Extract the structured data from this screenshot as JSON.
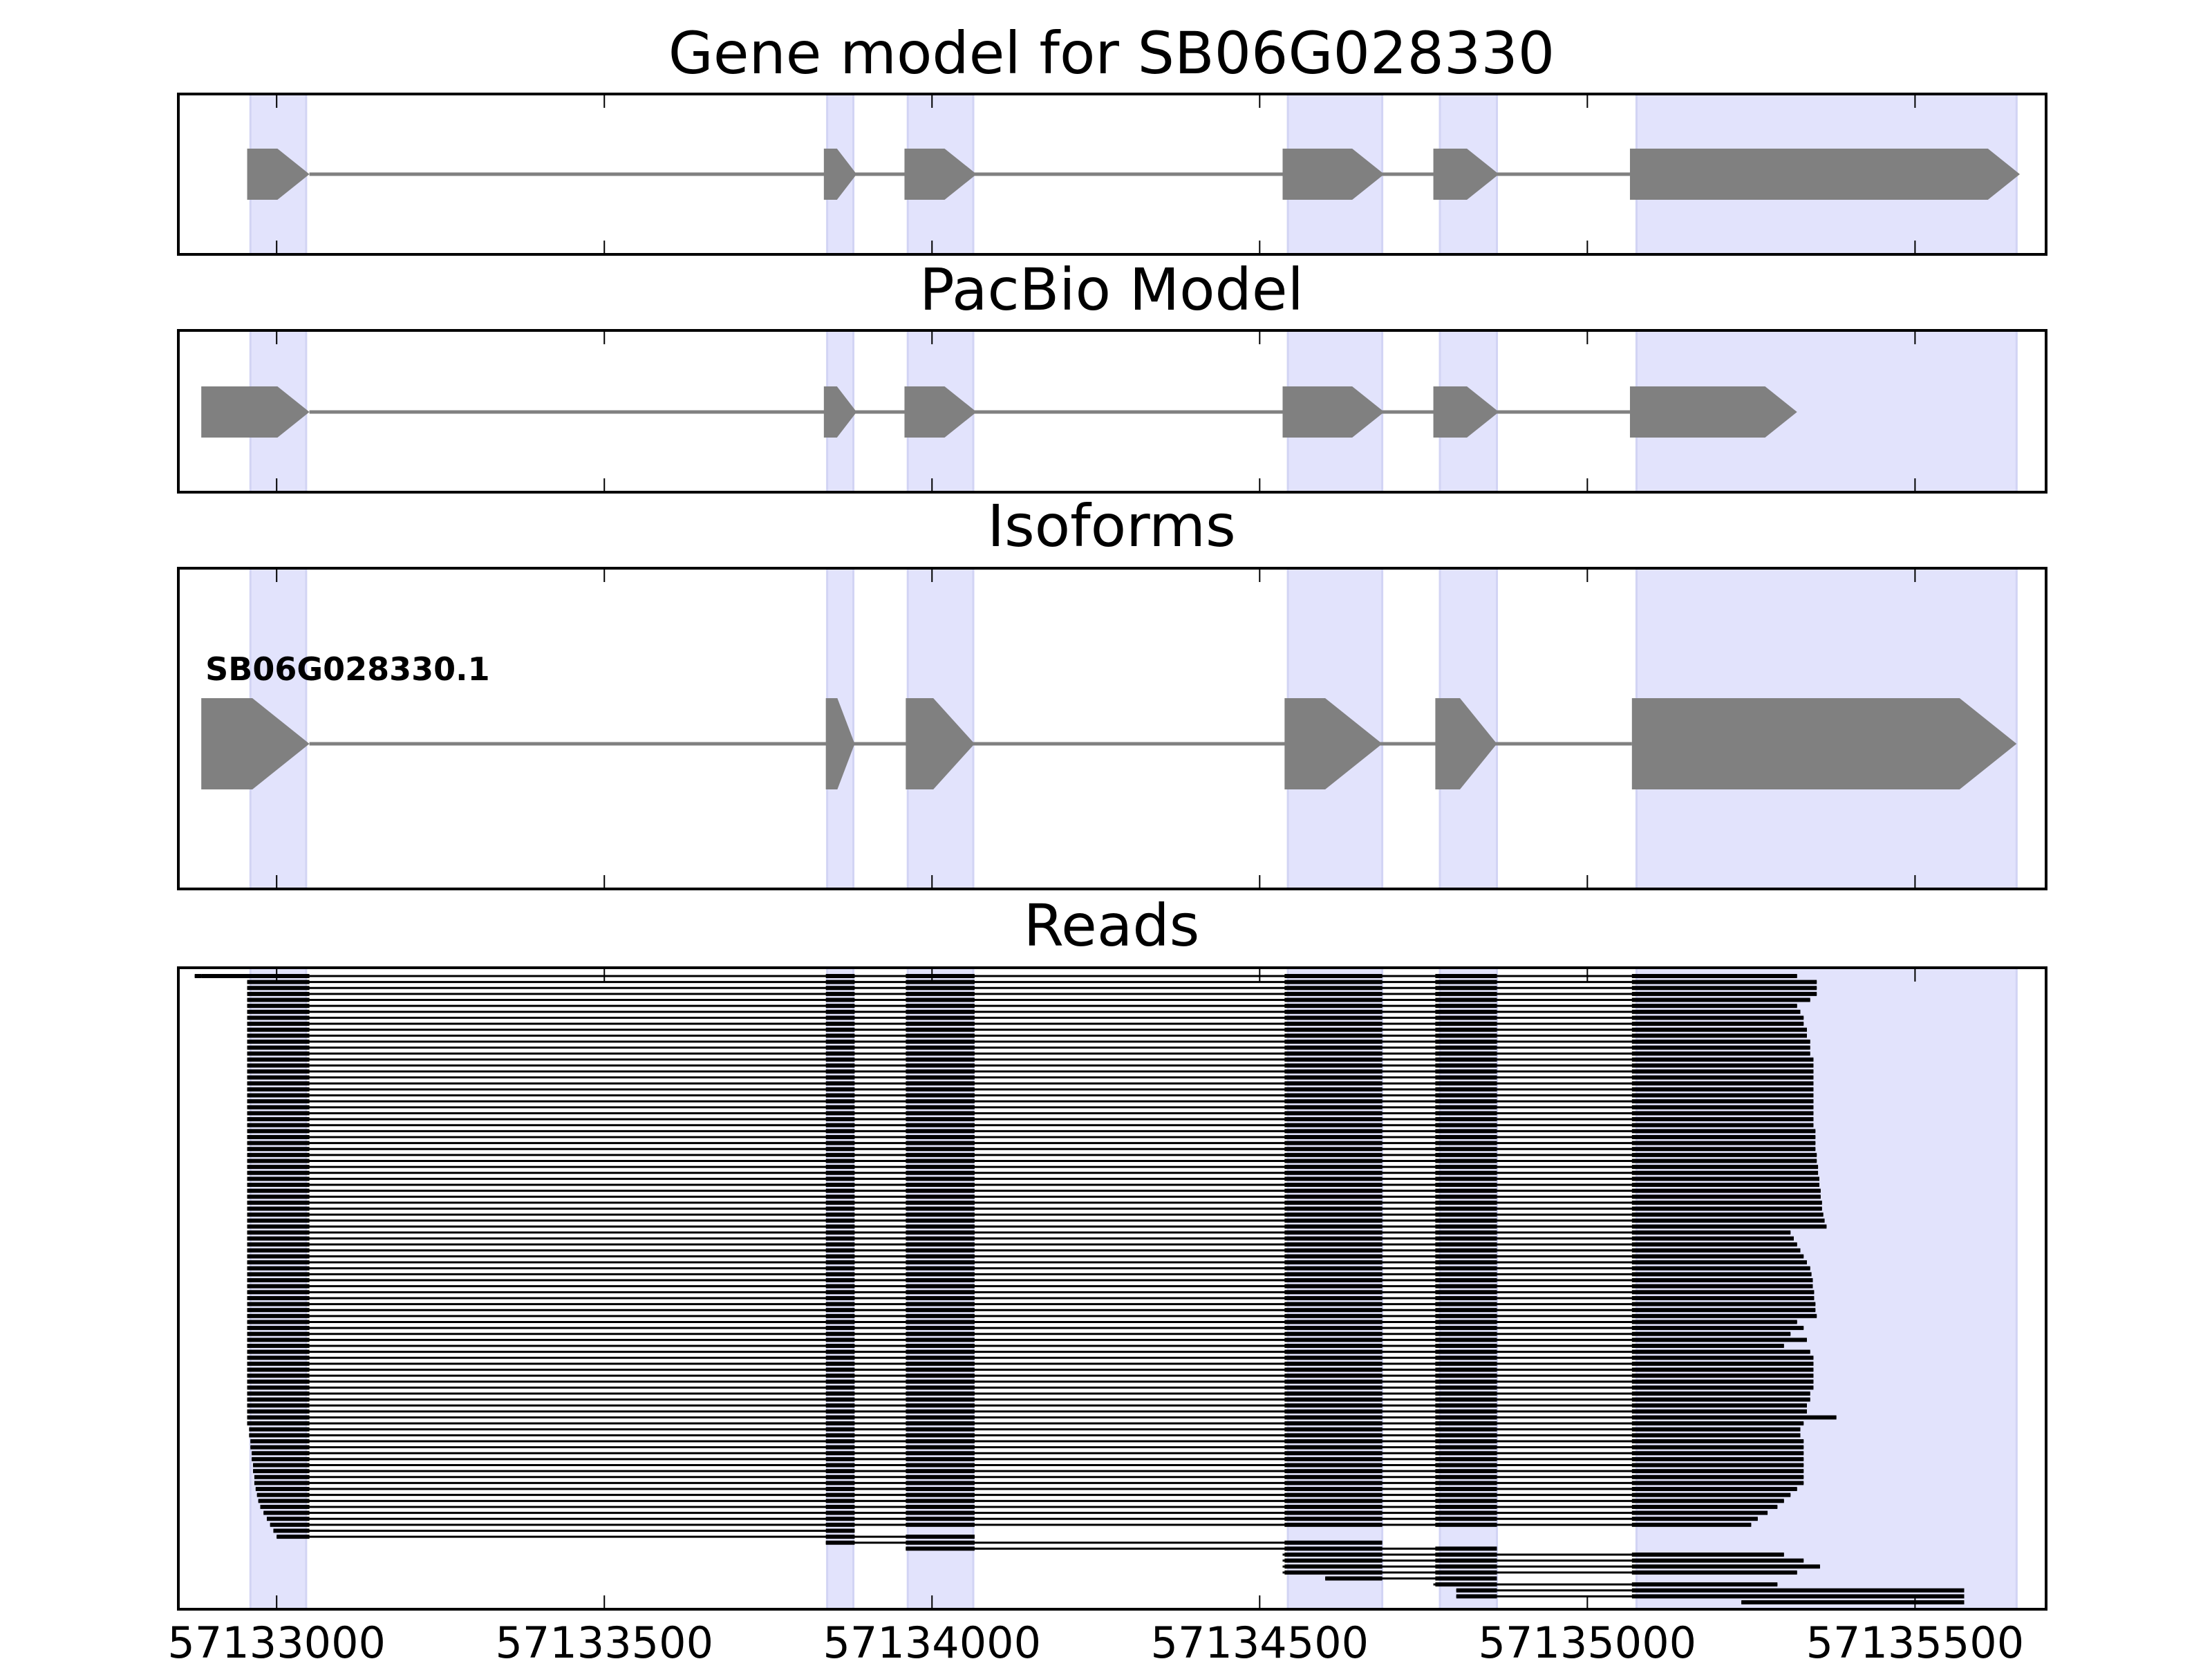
{
  "chart_data": {
    "type": "gene-track",
    "xlim": [
      57132850,
      57135700
    ],
    "xticks": [
      57133000,
      57133500,
      57134000,
      57134500,
      57135000,
      57135500
    ],
    "xtick_labels": [
      "57133000",
      "57133500",
      "57134000",
      "57134500",
      "57135000",
      "57135500"
    ],
    "colors": {
      "exon": "#808080",
      "intron": "#808080",
      "highlight": "#e2e3fc",
      "read": "#000000",
      "axis": "#000000"
    },
    "highlight_regions": [
      [
        57132960,
        57133045
      ],
      [
        57133840,
        57133880
      ],
      [
        57133963,
        57134063
      ],
      [
        57134543,
        57134687
      ],
      [
        57134775,
        57134862
      ],
      [
        57135075,
        57135655
      ]
    ],
    "panels": [
      {
        "title": "Gene model for SB06G028330",
        "features": [
          {
            "label": "",
            "strand": "+",
            "exons": [
              [
                57132955,
                57133050
              ],
              [
                57133835,
                57133885
              ],
              [
                57133958,
                57134068
              ],
              [
                57134535,
                57134690
              ],
              [
                57134765,
                57134865
              ],
              [
                57135065,
                57135660
              ]
            ]
          }
        ]
      },
      {
        "title": "PacBio Model",
        "features": [
          {
            "label": "",
            "strand": "+",
            "exons": [
              [
                57132885,
                57133050
              ],
              [
                57133835,
                57133885
              ],
              [
                57133958,
                57134068
              ],
              [
                57134535,
                57134690
              ],
              [
                57134765,
                57134865
              ],
              [
                57135065,
                57135320
              ]
            ]
          }
        ]
      },
      {
        "title": "Isoforms",
        "features": [
          {
            "label": "SB06G028330.1",
            "strand": "+",
            "exons": [
              [
                57132885,
                57133050
              ],
              [
                57133838,
                57133882
              ],
              [
                57133960,
                57134065
              ],
              [
                57134538,
                57134687
              ],
              [
                57134768,
                57134862
              ],
              [
                57135068,
                57135655
              ]
            ]
          }
        ]
      }
    ],
    "reads": {
      "title": "Reads",
      "count": 106,
      "start": [
        57132875,
        57132955,
        57132955,
        57132955,
        57132955,
        57132955,
        57132955,
        57132955,
        57132955,
        57132955,
        57132955,
        57132955,
        57132955,
        57132955,
        57132955,
        57132955,
        57132955,
        57132955,
        57132955,
        57132955,
        57132955,
        57132955,
        57132955,
        57132955,
        57132955,
        57132955,
        57132955,
        57132955,
        57132955,
        57132955,
        57132955,
        57132955,
        57132955,
        57132955,
        57132955,
        57132955,
        57132955,
        57132955,
        57132955,
        57132955,
        57132955,
        57132955,
        57132955,
        57132955,
        57132955,
        57132955,
        57132955,
        57132955,
        57132955,
        57132955,
        57132955,
        57132955,
        57132955,
        57132955,
        57132955,
        57132955,
        57132955,
        57132955,
        57132955,
        57132955,
        57132955,
        57132955,
        57132955,
        57132955,
        57132955,
        57132955,
        57132955,
        57132955,
        57132955,
        57132955,
        57132955,
        57132955,
        57132955,
        57132955,
        57132955,
        57132955,
        57132958,
        57132958,
        57132960,
        57132960,
        57132962,
        57132962,
        57132964,
        57132964,
        57132966,
        57132966,
        57132968,
        57132970,
        57132972,
        57132975,
        57132980,
        57132985,
        57132990,
        57132995,
        57133000,
        57133838,
        57133960,
        57134535,
        57134535,
        57134535,
        57134535,
        57134600,
        57134765,
        57134800,
        57134800,
        57135235
      ],
      "end": [
        57135320,
        57135350,
        57135350,
        57135350,
        57135340,
        57135320,
        57135325,
        57135330,
        57135330,
        57135335,
        57135335,
        57135340,
        57135340,
        57135340,
        57135345,
        57135345,
        57135345,
        57135345,
        57135345,
        57135345,
        57135345,
        57135345,
        57135345,
        57135345,
        57135345,
        57135345,
        57135348,
        57135348,
        57135348,
        57135348,
        57135350,
        57135350,
        57135352,
        57135352,
        57135354,
        57135354,
        57135356,
        57135356,
        57135358,
        57135358,
        57135360,
        57135362,
        57135365,
        57135310,
        57135315,
        57135320,
        57135325,
        57135330,
        57135335,
        57135340,
        57135342,
        57135344,
        57135344,
        57135346,
        57135346,
        57135348,
        57135348,
        57135350,
        57135320,
        57135330,
        57135310,
        57135335,
        57135300,
        57135340,
        57135345,
        57135345,
        57135345,
        57135345,
        57135345,
        57135345,
        57135340,
        57135340,
        57135335,
        57135335,
        57135380,
        57135330,
        57135325,
        57135325,
        57135330,
        57135330,
        57135330,
        57135330,
        57135330,
        57135330,
        57135330,
        57135330,
        57135320,
        57135310,
        57135300,
        57135290,
        57135275,
        57135260,
        57135250,
        57133882,
        57134065,
        57134687,
        57134862,
        57135300,
        57135330,
        57135355,
        57135320,
        57134862,
        57135290,
        57135575,
        57135575,
        57135575
      ]
    }
  }
}
